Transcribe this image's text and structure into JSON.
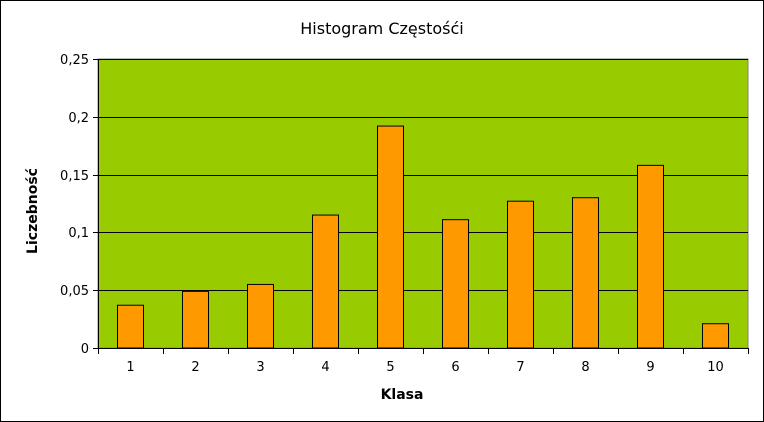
{
  "chart_data": {
    "type": "bar",
    "title": "Histogram Częstośći",
    "xlabel": "Klasa",
    "ylabel": "Liczebność",
    "categories": [
      "1",
      "2",
      "3",
      "4",
      "5",
      "6",
      "7",
      "8",
      "9",
      "10"
    ],
    "values": [
      0.037,
      0.049,
      0.055,
      0.115,
      0.192,
      0.111,
      0.127,
      0.13,
      0.158,
      0.021
    ],
    "ylim": [
      0,
      0.25
    ],
    "yticks": [
      0,
      0.05,
      0.1,
      0.15,
      0.2,
      0.25
    ],
    "ytick_labels": [
      "0",
      "0,05",
      "0,1",
      "0,15",
      "0,2",
      "0,25"
    ],
    "grid": true,
    "legend": "none",
    "colors": {
      "plot_background": "#99CC00",
      "bar_fill": "#FF9900",
      "bar_stroke": "#000000",
      "grid": "#000000"
    }
  }
}
